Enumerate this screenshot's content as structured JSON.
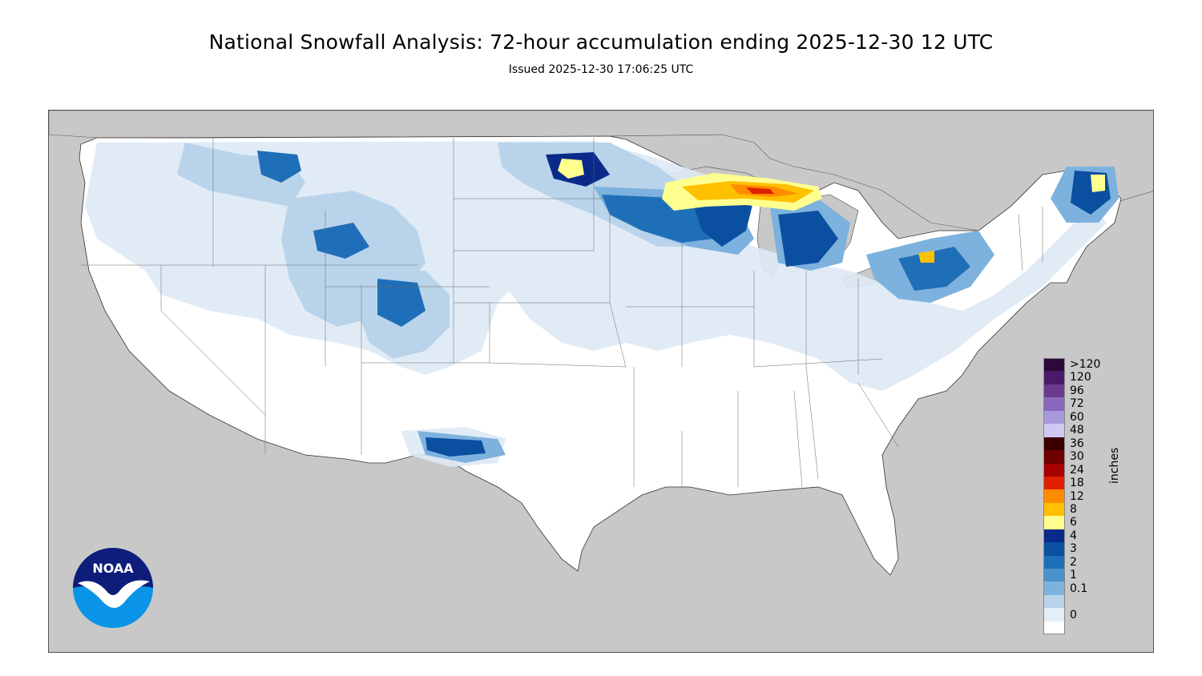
{
  "header": {
    "title": "National Snowfall Analysis: 72-hour accumulation ending 2025-12-30 12 UTC",
    "issued": "Issued 2025-12-30 17:06:25 UTC"
  },
  "logo": {
    "text": "NOAA",
    "icon": "noaa-logo-icon"
  },
  "legend": {
    "unit": "inches",
    "entries": [
      {
        "label": ">120",
        "color": "#2a0a3a"
      },
      {
        "label": "120",
        "color": "#4a1a6a"
      },
      {
        "label": "96",
        "color": "#6a3a8e"
      },
      {
        "label": "72",
        "color": "#8a68c0"
      },
      {
        "label": "60",
        "color": "#a898dc"
      },
      {
        "label": "48",
        "color": "#cfc8f2"
      },
      {
        "label": "36",
        "color": "#3a0000"
      },
      {
        "label": "30",
        "color": "#6e0000"
      },
      {
        "label": "24",
        "color": "#a80000"
      },
      {
        "label": "18",
        "color": "#e02000"
      },
      {
        "label": "12",
        "color": "#ff8c00"
      },
      {
        "label": "8",
        "color": "#ffc000"
      },
      {
        "label": "6",
        "color": "#ffff90"
      },
      {
        "label": "4",
        "color": "#0a2a8a"
      },
      {
        "label": "3",
        "color": "#0b4fa0"
      },
      {
        "label": "2",
        "color": "#1f6fb8"
      },
      {
        "label": "1",
        "color": "#4a92cc"
      },
      {
        "label": "0.1",
        "color": "#7db2de"
      },
      {
        "label": "",
        "color": "#b9d4ea"
      },
      {
        "label": "0",
        "color": "#e4eef7"
      },
      {
        "label": "",
        "color": "#ffffff"
      }
    ]
  },
  "colors": {
    "ocean_background": "#c8c8c8",
    "land": "#ffffff",
    "border_lines": "#444444"
  }
}
